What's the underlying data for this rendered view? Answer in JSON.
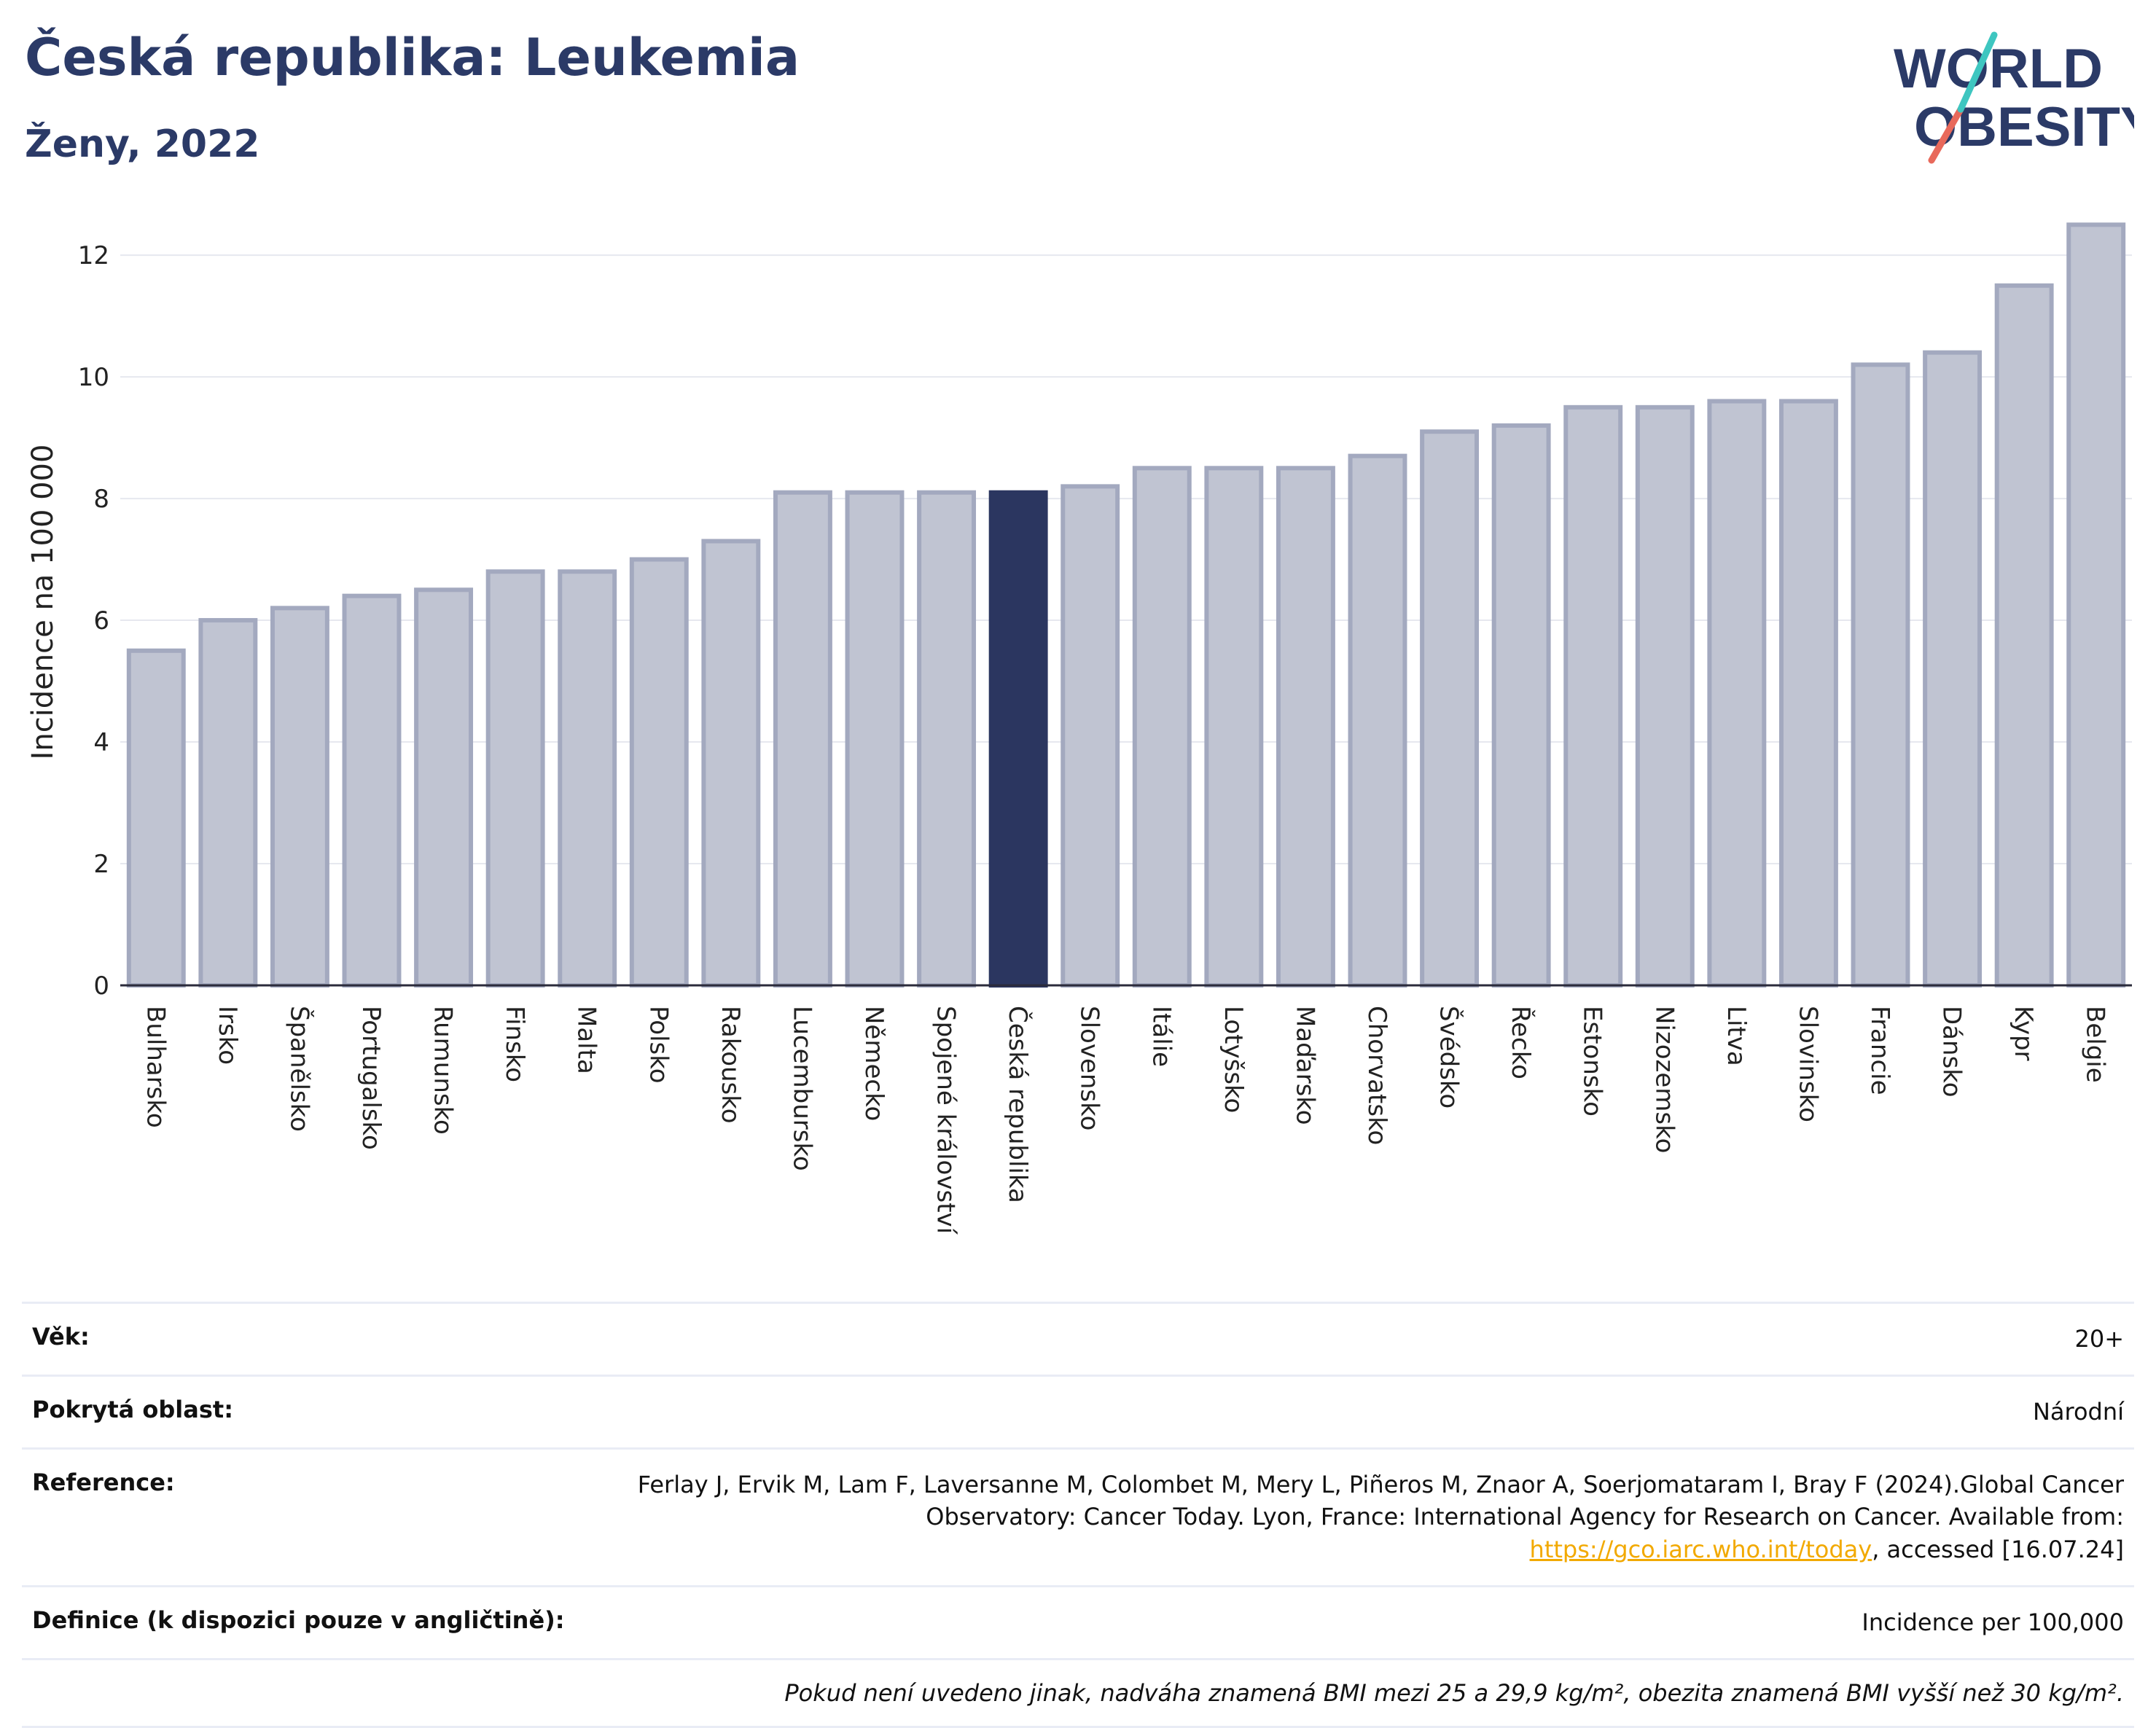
{
  "header": {
    "title": "Česká republika: Leukemia",
    "subtitle": "Ženy, 2022"
  },
  "logo": {
    "line1": "WORLD",
    "line2": "OBESITY",
    "text_color": "#2b3a67",
    "accent_teal": "#3ec6c0",
    "accent_red": "#e8695b"
  },
  "chart_data": {
    "type": "bar",
    "ylabel": "Incidence na 100 000",
    "ylim": [
      0,
      12.6
    ],
    "yticks": [
      0,
      2,
      4,
      6,
      8,
      10,
      12
    ],
    "grid": true,
    "categories": [
      "Bulharsko",
      "Irsko",
      "Španělsko",
      "Portugalsko",
      "Rumunsko",
      "Finsko",
      "Malta",
      "Polsko",
      "Rakousko",
      "Lucembursko",
      "Německo",
      "Spojené království",
      "Česká republika",
      "Slovensko",
      "Itálie",
      "Lotyšsko",
      "Maďarsko",
      "Chorvatsko",
      "Švédsko",
      "Řecko",
      "Estonsko",
      "Nizozemsko",
      "Litva",
      "Slovinsko",
      "Francie",
      "Dánsko",
      "Kypr",
      "Belgie"
    ],
    "values": [
      5.5,
      6.0,
      6.2,
      6.4,
      6.5,
      6.8,
      6.8,
      7.0,
      7.3,
      8.1,
      8.1,
      8.1,
      8.1,
      8.2,
      8.5,
      8.5,
      8.5,
      8.7,
      9.1,
      9.2,
      9.5,
      9.5,
      9.6,
      9.6,
      10.2,
      10.4,
      11.5,
      12.5
    ],
    "highlight": "Česká republika",
    "colors": {
      "bar": "#c0c4d2",
      "bar_border": "#a3a9bf",
      "highlight": "#2b3660",
      "axis": "#2b2b3b",
      "grid": "#e6e8ef"
    }
  },
  "info": {
    "age_label": "Věk:",
    "age_value": "20+",
    "area_label": "Pokrytá oblast:",
    "area_value": "Národní",
    "reference_label": "Reference:",
    "reference_text": "Ferlay J, Ervik M, Lam F, Laversanne M, Colombet M, Mery L, Piñeros M, Znaor A, Soerjomataram I, Bray F (2024).Global Cancer Observatory: Cancer Today. Lyon, France: International Agency for Research on Cancer. Available from: ",
    "reference_link": "https://gco.iarc.who.int/today",
    "reference_tail": ", accessed [16.07.24]",
    "definition_label": "Definice (k dispozici pouze v angličtině):",
    "definition_value": "Incidence per 100,000",
    "note": "Pokud není uvedeno jinak, nadváha znamená BMI mezi 25 a 29,9 kg/m², obezita znamená BMI vyšší než 30 kg/m²."
  }
}
